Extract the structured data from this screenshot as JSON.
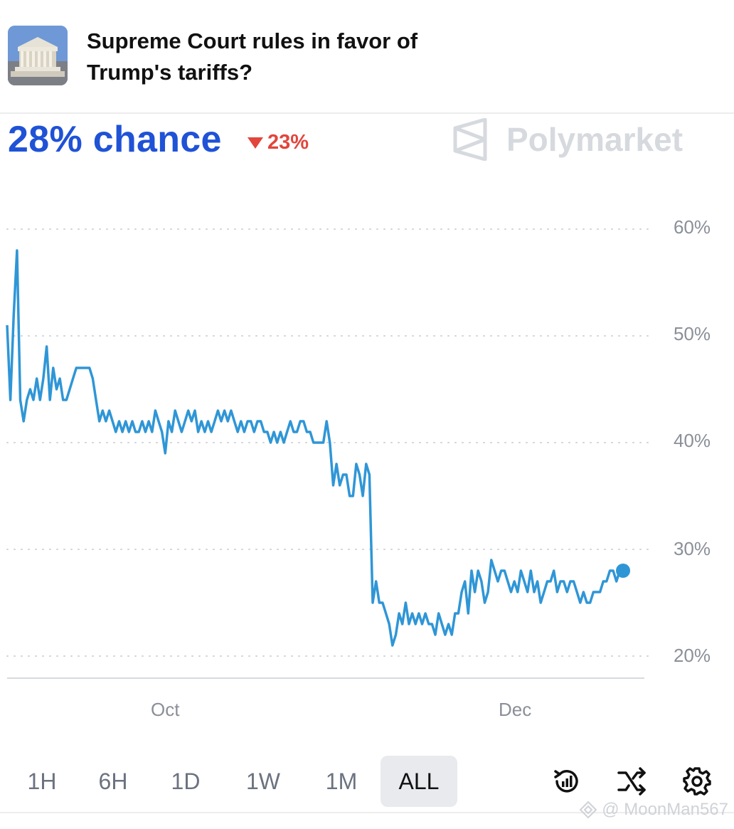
{
  "market": {
    "question": "Supreme Court rules in favor of Trump's tariffs?",
    "chance_text": "28% chance",
    "change_text": "23%",
    "change_direction": "down",
    "brand": "Polymarket"
  },
  "colors": {
    "chance_blue": "#1f52d6",
    "line_blue": "#2f96d6",
    "down_red": "#e2453c"
  },
  "chart_data": {
    "type": "line",
    "y_unit": "%",
    "ylim": [
      20,
      60
    ],
    "y_ticks": [
      "60%",
      "50%",
      "40%",
      "30%",
      "20%"
    ],
    "x_ticks": [
      "Oct",
      "Dec"
    ],
    "grid": "horizontal dotted",
    "series": [
      {
        "values": [
          51,
          44,
          52,
          58,
          44,
          42,
          44,
          45,
          44,
          46,
          44,
          46,
          49,
          44,
          47,
          45,
          46,
          44,
          44,
          45,
          46,
          47,
          47,
          47,
          47,
          47,
          46,
          44,
          42,
          43,
          42,
          43,
          42,
          41,
          42,
          41,
          42,
          41,
          42,
          41,
          41,
          42,
          41,
          42,
          41,
          43,
          42,
          41,
          39,
          42,
          41,
          43,
          42,
          41,
          42,
          43,
          42,
          43,
          41,
          42,
          41,
          42,
          41,
          42,
          43,
          42,
          43,
          42,
          43,
          42,
          41,
          42,
          41,
          42,
          42,
          41,
          42,
          42,
          41,
          41,
          40,
          41,
          40,
          41,
          40,
          41,
          42,
          41,
          41,
          42,
          42,
          41,
          41,
          40,
          40,
          40,
          40,
          42,
          40,
          36,
          38,
          36,
          37,
          37,
          35,
          35,
          38,
          37,
          35,
          38,
          37,
          25,
          27,
          25,
          25,
          24,
          23,
          21,
          22,
          24,
          23,
          25,
          23,
          24,
          23,
          24,
          23,
          24,
          23,
          23,
          22,
          24,
          23,
          22,
          23,
          22,
          24,
          24,
          26,
          27,
          24,
          28,
          26,
          28,
          27,
          25,
          26,
          29,
          28,
          27,
          28,
          28,
          27,
          26,
          27,
          26,
          28,
          27,
          26,
          28,
          26,
          27,
          25,
          26,
          27,
          27,
          28,
          26,
          27,
          27,
          26,
          27,
          27,
          26,
          25,
          26,
          25,
          25,
          26,
          26,
          26,
          27,
          27,
          28,
          28,
          27,
          28,
          28
        ]
      }
    ],
    "end_value": 28
  },
  "controls": {
    "ranges": [
      "1H",
      "6H",
      "1D",
      "1W",
      "1M",
      "ALL"
    ],
    "active_range": "ALL",
    "tools": [
      "history-chart-icon",
      "shuffle-icon",
      "gear-icon"
    ]
  },
  "watermark": "@ MoonMan567"
}
